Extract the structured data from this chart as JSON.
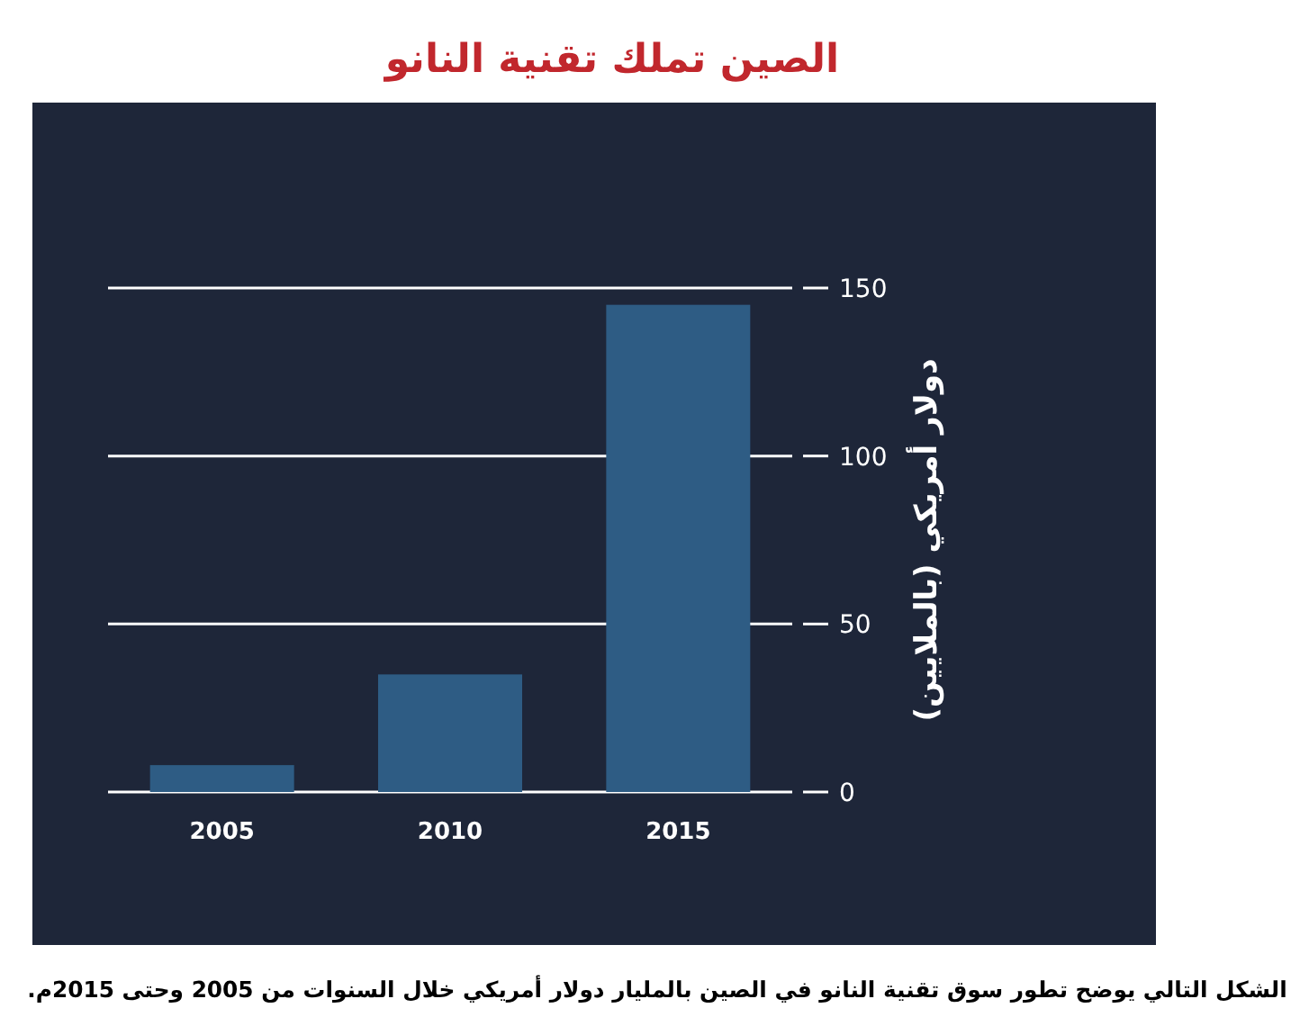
{
  "chart_data": {
    "type": "bar",
    "title": "الصين تملك تقنية النانو",
    "categories": [
      "2005",
      "2010",
      "2015"
    ],
    "values": [
      8,
      35,
      145
    ],
    "color": "#2e5c84",
    "ylabel": "دولار أمريكي (بالملايين)",
    "ylim": [
      0,
      150
    ],
    "yticks": [
      0,
      50,
      100,
      150
    ],
    "grid": "y",
    "annotations": [
      "الشكل التالي يوضح تطور سوق تقنية النانو في الصين بالمليار دولار أمريكي خلال السنوات من 2005 وحتى 2015م."
    ]
  }
}
